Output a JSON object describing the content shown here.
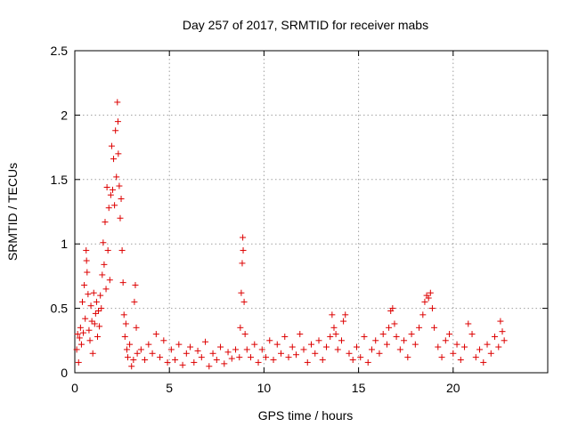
{
  "chart_data": {
    "type": "scatter",
    "title": "Day 257 of 2017, SRMTID for receiver mabs",
    "xlabel": "GPS time / hours",
    "ylabel": "SRMTID / TECUs",
    "xlim": [
      0,
      25
    ],
    "ylim": [
      0,
      2.5
    ],
    "xticks": [
      0,
      5,
      10,
      15,
      20
    ],
    "xtick_labels": [
      "0",
      "5",
      "10",
      "15",
      "20"
    ],
    "yticks": [
      0,
      0.5,
      1,
      1.5,
      2,
      2.5
    ],
    "ytick_labels": [
      "0",
      "0.5",
      "1",
      "1.5",
      "2",
      "2.5"
    ],
    "grid": true,
    "marker": "+",
    "color": "#dd0000",
    "series": [
      {
        "name": "SRMTID",
        "points": [
          [
            0.1,
            0.18
          ],
          [
            0.15,
            0.3
          ],
          [
            0.2,
            0.08
          ],
          [
            0.25,
            0.27
          ],
          [
            0.3,
            0.35
          ],
          [
            0.35,
            0.22
          ],
          [
            0.4,
            0.55
          ],
          [
            0.45,
            0.31
          ],
          [
            0.5,
            0.68
          ],
          [
            0.55,
            0.42
          ],
          [
            0.6,
            0.95
          ],
          [
            0.62,
            0.87
          ],
          [
            0.65,
            0.78
          ],
          [
            0.7,
            0.61
          ],
          [
            0.75,
            0.33
          ],
          [
            0.8,
            0.25
          ],
          [
            0.85,
            0.52
          ],
          [
            0.9,
            0.4
          ],
          [
            0.95,
            0.15
          ],
          [
            1.0,
            0.62
          ],
          [
            1.05,
            0.38
          ],
          [
            1.1,
            0.46
          ],
          [
            1.15,
            0.55
          ],
          [
            1.2,
            0.28
          ],
          [
            1.25,
            0.48
          ],
          [
            1.3,
            0.36
          ],
          [
            1.35,
            0.6
          ],
          [
            1.4,
            0.5
          ],
          [
            1.45,
            0.76
          ],
          [
            1.5,
            1.01
          ],
          [
            1.55,
            0.84
          ],
          [
            1.6,
            1.17
          ],
          [
            1.65,
            0.65
          ],
          [
            1.7,
            1.44
          ],
          [
            1.75,
            0.95
          ],
          [
            1.8,
            1.28
          ],
          [
            1.85,
            0.72
          ],
          [
            1.9,
            1.38
          ],
          [
            1.95,
            1.76
          ],
          [
            2.0,
            1.42
          ],
          [
            2.05,
            1.66
          ],
          [
            2.1,
            1.3
          ],
          [
            2.15,
            1.88
          ],
          [
            2.2,
            1.52
          ],
          [
            2.25,
            2.1
          ],
          [
            2.28,
            1.95
          ],
          [
            2.3,
            1.7
          ],
          [
            2.35,
            1.45
          ],
          [
            2.4,
            1.2
          ],
          [
            2.45,
            1.35
          ],
          [
            2.5,
            0.95
          ],
          [
            2.55,
            0.7
          ],
          [
            2.6,
            0.45
          ],
          [
            2.65,
            0.28
          ],
          [
            2.7,
            0.38
          ],
          [
            2.75,
            0.18
          ],
          [
            2.8,
            0.12
          ],
          [
            2.9,
            0.22
          ],
          [
            3.0,
            0.05
          ],
          [
            3.1,
            0.1
          ],
          [
            3.15,
            0.55
          ],
          [
            3.2,
            0.68
          ],
          [
            3.25,
            0.35
          ],
          [
            3.3,
            0.15
          ],
          [
            3.5,
            0.18
          ],
          [
            3.7,
            0.1
          ],
          [
            3.9,
            0.22
          ],
          [
            4.1,
            0.15
          ],
          [
            4.3,
            0.3
          ],
          [
            4.5,
            0.12
          ],
          [
            4.7,
            0.25
          ],
          [
            4.9,
            0.08
          ],
          [
            5.1,
            0.18
          ],
          [
            5.3,
            0.1
          ],
          [
            5.5,
            0.22
          ],
          [
            5.7,
            0.06
          ],
          [
            5.9,
            0.15
          ],
          [
            6.1,
            0.2
          ],
          [
            6.3,
            0.08
          ],
          [
            6.5,
            0.17
          ],
          [
            6.7,
            0.12
          ],
          [
            6.9,
            0.24
          ],
          [
            7.1,
            0.05
          ],
          [
            7.3,
            0.15
          ],
          [
            7.5,
            0.1
          ],
          [
            7.7,
            0.2
          ],
          [
            7.9,
            0.07
          ],
          [
            8.1,
            0.16
          ],
          [
            8.3,
            0.11
          ],
          [
            8.5,
            0.18
          ],
          [
            8.7,
            0.12
          ],
          [
            8.75,
            0.35
          ],
          [
            8.8,
            0.62
          ],
          [
            8.85,
            0.85
          ],
          [
            8.88,
            1.05
          ],
          [
            8.9,
            0.95
          ],
          [
            8.95,
            0.55
          ],
          [
            9.0,
            0.3
          ],
          [
            9.1,
            0.18
          ],
          [
            9.3,
            0.12
          ],
          [
            9.5,
            0.22
          ],
          [
            9.7,
            0.08
          ],
          [
            9.9,
            0.18
          ],
          [
            10.1,
            0.12
          ],
          [
            10.3,
            0.25
          ],
          [
            10.5,
            0.1
          ],
          [
            10.7,
            0.22
          ],
          [
            10.9,
            0.15
          ],
          [
            11.1,
            0.28
          ],
          [
            11.3,
            0.12
          ],
          [
            11.5,
            0.2
          ],
          [
            11.7,
            0.14
          ],
          [
            11.9,
            0.3
          ],
          [
            12.1,
            0.18
          ],
          [
            12.3,
            0.08
          ],
          [
            12.5,
            0.22
          ],
          [
            12.7,
            0.15
          ],
          [
            12.9,
            0.25
          ],
          [
            13.1,
            0.1
          ],
          [
            13.3,
            0.2
          ],
          [
            13.5,
            0.28
          ],
          [
            13.6,
            0.45
          ],
          [
            13.7,
            0.35
          ],
          [
            13.8,
            0.3
          ],
          [
            13.9,
            0.18
          ],
          [
            14.1,
            0.25
          ],
          [
            14.2,
            0.4
          ],
          [
            14.3,
            0.45
          ],
          [
            14.5,
            0.15
          ],
          [
            14.7,
            0.1
          ],
          [
            14.9,
            0.2
          ],
          [
            15.1,
            0.12
          ],
          [
            15.3,
            0.28
          ],
          [
            15.5,
            0.08
          ],
          [
            15.7,
            0.18
          ],
          [
            15.9,
            0.25
          ],
          [
            16.1,
            0.15
          ],
          [
            16.3,
            0.3
          ],
          [
            16.5,
            0.22
          ],
          [
            16.6,
            0.35
          ],
          [
            16.7,
            0.48
          ],
          [
            16.8,
            0.5
          ],
          [
            16.9,
            0.38
          ],
          [
            17.0,
            0.28
          ],
          [
            17.2,
            0.18
          ],
          [
            17.4,
            0.25
          ],
          [
            17.6,
            0.12
          ],
          [
            17.8,
            0.3
          ],
          [
            18.0,
            0.22
          ],
          [
            18.2,
            0.35
          ],
          [
            18.4,
            0.45
          ],
          [
            18.5,
            0.55
          ],
          [
            18.6,
            0.6
          ],
          [
            18.7,
            0.58
          ],
          [
            18.8,
            0.62
          ],
          [
            18.9,
            0.5
          ],
          [
            19.0,
            0.35
          ],
          [
            19.2,
            0.2
          ],
          [
            19.4,
            0.12
          ],
          [
            19.6,
            0.25
          ],
          [
            19.8,
            0.3
          ],
          [
            20.0,
            0.15
          ],
          [
            20.2,
            0.22
          ],
          [
            20.4,
            0.1
          ],
          [
            20.6,
            0.2
          ],
          [
            20.8,
            0.38
          ],
          [
            21.0,
            0.3
          ],
          [
            21.2,
            0.12
          ],
          [
            21.4,
            0.18
          ],
          [
            21.6,
            0.08
          ],
          [
            21.8,
            0.22
          ],
          [
            22.0,
            0.15
          ],
          [
            22.2,
            0.28
          ],
          [
            22.4,
            0.2
          ],
          [
            22.5,
            0.4
          ],
          [
            22.6,
            0.32
          ],
          [
            22.7,
            0.25
          ]
        ]
      }
    ]
  }
}
